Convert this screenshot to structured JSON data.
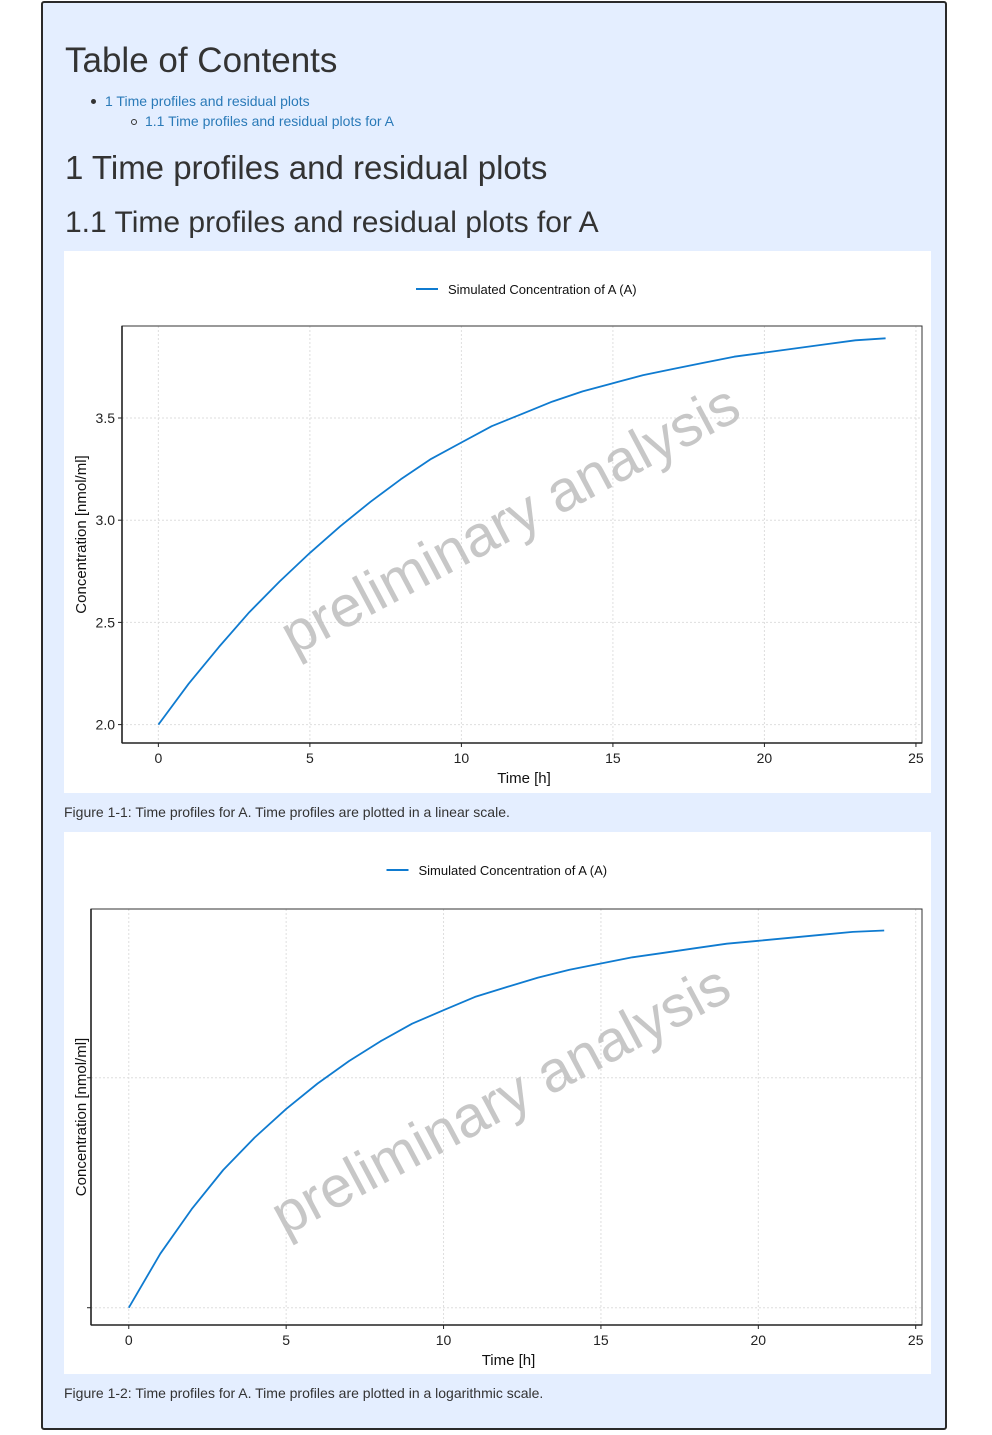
{
  "toc": {
    "title": "Table of Contents",
    "items": [
      {
        "label": "1 Time profiles and residual plots"
      },
      {
        "label": "1.1 Time profiles and residual plots for A"
      }
    ]
  },
  "section": {
    "h1": "1 Time profiles and residual plots",
    "h2": "1.1 Time profiles and residual plots for A"
  },
  "watermark": "preliminary analysis",
  "colors": {
    "series": "#0f7bd0",
    "link": "#2a7ab8",
    "background": "#e4eeff"
  },
  "chart_data": [
    {
      "type": "line",
      "scale": "linear",
      "legend_position": "top",
      "xlabel": "Time [h]",
      "ylabel": "Concentration [nmol/ml]",
      "xlim": [
        -1.2,
        25.2
      ],
      "ylim": [
        1.91,
        3.95
      ],
      "xticks": [
        0,
        5,
        10,
        15,
        20,
        25
      ],
      "xtick_labels": [
        "0",
        "5",
        "10",
        "15",
        "20",
        "25"
      ],
      "yticks": [
        2.0,
        2.5,
        3.0,
        3.5
      ],
      "ytick_labels": [
        "2.0",
        "2.5",
        "3.0",
        "3.5"
      ],
      "grid": true,
      "series": [
        {
          "name": "Simulated Concentration of A (A)",
          "x": [
            0,
            1,
            2,
            3,
            4,
            5,
            6,
            7,
            8,
            9,
            10,
            11,
            12,
            13,
            14,
            15,
            16,
            17,
            18,
            19,
            20,
            21,
            22,
            23,
            24
          ],
          "y": [
            2.0,
            2.2,
            2.38,
            2.55,
            2.7,
            2.84,
            2.97,
            3.09,
            3.2,
            3.3,
            3.38,
            3.46,
            3.52,
            3.58,
            3.63,
            3.67,
            3.71,
            3.74,
            3.77,
            3.8,
            3.82,
            3.84,
            3.86,
            3.88,
            3.89
          ]
        }
      ],
      "caption": "Figure 1-1: Time profiles for A. Time profiles are plotted in a linear scale."
    },
    {
      "type": "line",
      "scale": "log",
      "legend_position": "top",
      "xlabel": "Time [h]",
      "ylabel": "Concentration [nmol/ml]",
      "xlim": [
        -1.2,
        25.2
      ],
      "ylim": [
        1.94,
        4.04
      ],
      "xticks": [
        0,
        5,
        10,
        15,
        20,
        25
      ],
      "xtick_labels": [
        "0",
        "5",
        "10",
        "15",
        "20",
        "25"
      ],
      "yticks": [
        2.0,
        3.0
      ],
      "ytick_labels": [
        "",
        ""
      ],
      "grid": true,
      "series": [
        {
          "name": "Simulated Concentration of A (A)",
          "x": [
            0,
            1,
            2,
            3,
            4,
            5,
            6,
            7,
            8,
            9,
            10,
            11,
            12,
            13,
            14,
            15,
            16,
            17,
            18,
            19,
            20,
            21,
            22,
            23,
            24
          ],
          "y": [
            2.0,
            2.2,
            2.38,
            2.55,
            2.7,
            2.84,
            2.97,
            3.09,
            3.2,
            3.3,
            3.38,
            3.46,
            3.52,
            3.58,
            3.63,
            3.67,
            3.71,
            3.74,
            3.77,
            3.8,
            3.82,
            3.84,
            3.86,
            3.88,
            3.89
          ]
        }
      ],
      "caption": "Figure 1-2: Time profiles for A. Time profiles are plotted in a logarithmic scale."
    }
  ]
}
